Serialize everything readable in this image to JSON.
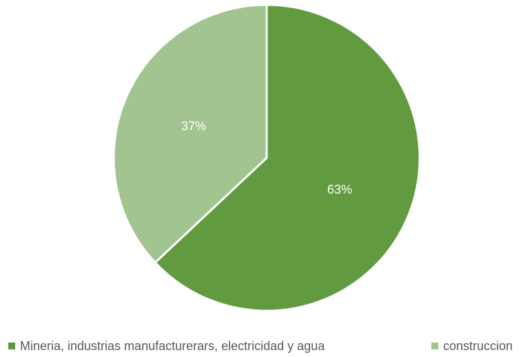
{
  "chart_data": {
    "type": "pie",
    "title": "",
    "legend_position": "bottom",
    "slices": [
      {
        "name": "Mineria, industrias manufacturerars, electricidad y agua",
        "value": 63,
        "label": "63%",
        "color": "#629b3f"
      },
      {
        "name": "construccion",
        "value": 37,
        "label": "37%",
        "color": "#a2c491"
      }
    ],
    "start_angle": "12 o'clock",
    "direction": "clockwise"
  }
}
